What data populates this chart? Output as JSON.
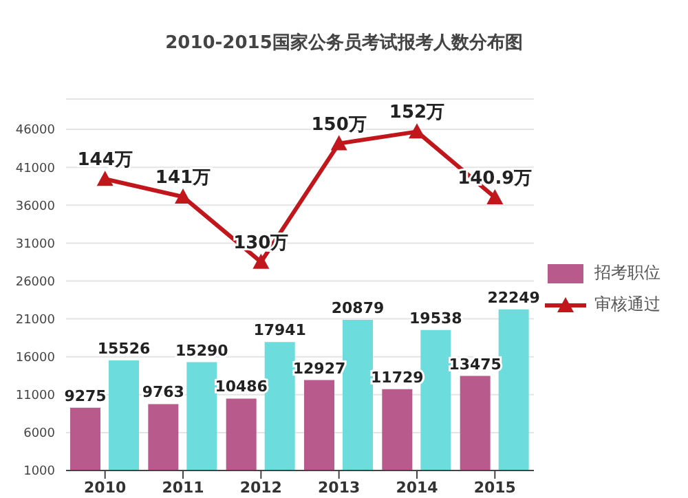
{
  "chart_data": {
    "type": "bar",
    "title": "2010-2015国家公务员考试报考人数分布图",
    "categories": [
      "2010",
      "2011",
      "2012",
      "2013",
      "2014",
      "2015"
    ],
    "series": [
      {
        "name": "招考职位",
        "color": "#b85b8c",
        "values": [
          9275,
          9763,
          10486,
          12927,
          11729,
          13475
        ]
      },
      {
        "color": "#6ddcdc",
        "values": [
          15526,
          15290,
          17941,
          20879,
          19538,
          22249
        ]
      },
      {
        "name": "审核通过",
        "type": "line",
        "axis": "y2",
        "color": "#c0161c",
        "values": [
          144,
          141,
          130,
          150,
          152,
          140.9
        ],
        "value_labels": [
          "144万",
          "141万",
          "130万",
          "150万",
          "152万",
          "140.9万"
        ]
      }
    ],
    "ylim": [
      1000,
      50000
    ],
    "yticks": [
      1000,
      6000,
      11000,
      16000,
      21000,
      26000,
      31000,
      36000,
      41000,
      46000
    ],
    "grid": "y",
    "legend": "right",
    "marker": "triangle",
    "data_labels": true
  }
}
